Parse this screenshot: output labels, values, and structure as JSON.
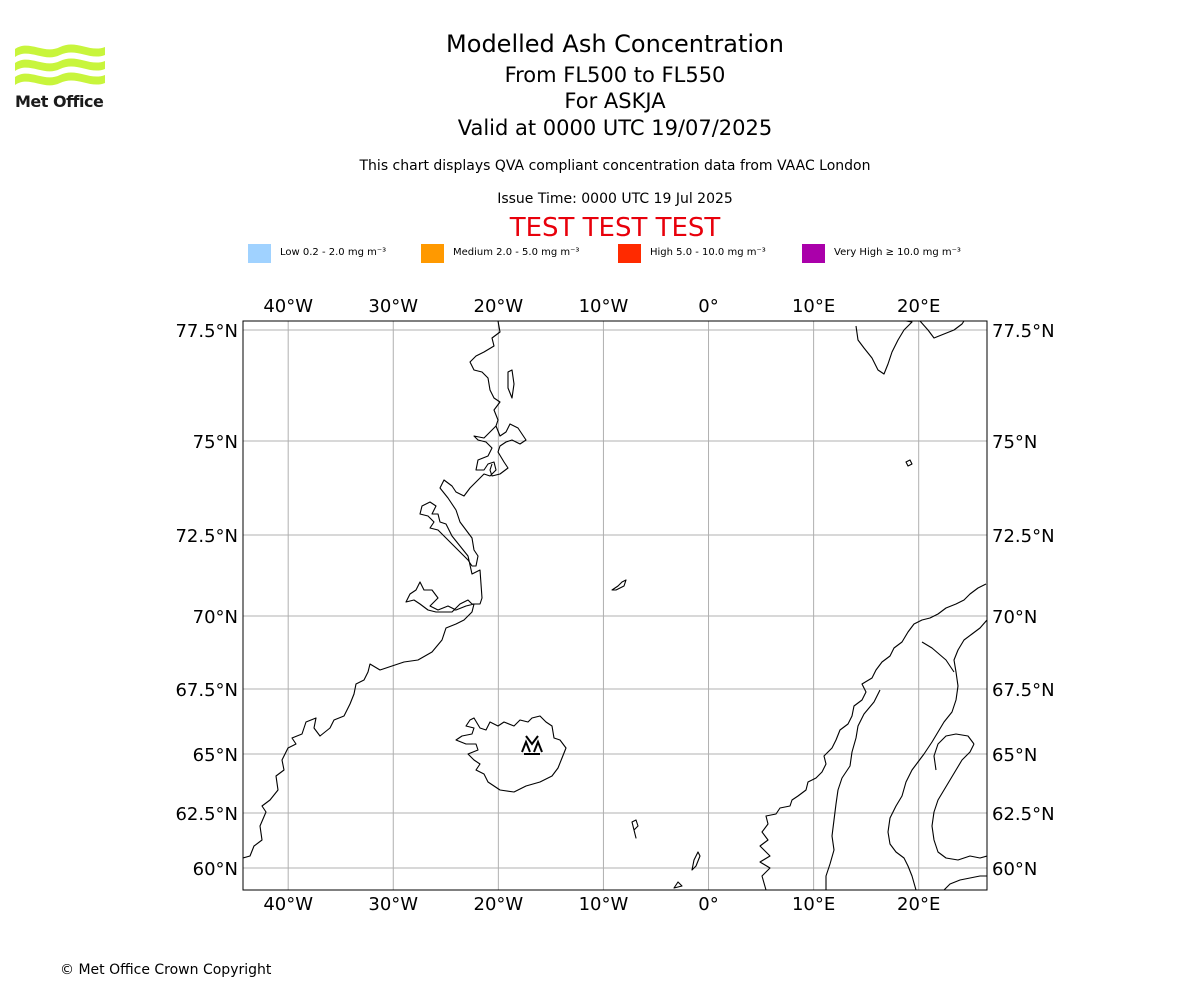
{
  "header": {
    "title": "Modelled Ash Concentration",
    "flight_levels": "From FL500 to FL550",
    "volcano_line": "For ASKJA",
    "valid_line": "Valid at 0000 UTC 19/07/2025",
    "subtitle": "This chart displays QVA compliant concentration data from VAAC London",
    "issue_time": "Issue Time: 0000 UTC 19 Jul 2025",
    "test_banner": "TEST TEST TEST"
  },
  "logo": {
    "text": "Met Office",
    "color": "#c8f53c"
  },
  "legend": [
    {
      "label": "Low 0.2 - 2.0 mg m⁻³",
      "color": "#a0d2ff"
    },
    {
      "label": "Medium 2.0 - 5.0 mg m⁻³",
      "color": "#ff9900"
    },
    {
      "label": "High 5.0 - 10.0 mg m⁻³",
      "color": "#ff2a00"
    },
    {
      "label": "Very High ≥ 10.0 mg m⁻³",
      "color": "#aa00aa"
    }
  ],
  "map": {
    "lon_range": [
      -44.3,
      26.5
    ],
    "lat_range": [
      59.2,
      77.7
    ],
    "lon_ticks": [
      {
        "value": -40,
        "label": "40°W"
      },
      {
        "value": -30,
        "label": "30°W"
      },
      {
        "value": -20,
        "label": "20°W"
      },
      {
        "value": -10,
        "label": "10°W"
      },
      {
        "value": 0,
        "label": "0°"
      },
      {
        "value": 10,
        "label": "10°E"
      },
      {
        "value": 20,
        "label": "20°E"
      }
    ],
    "lat_ticks": [
      {
        "value": 77.5,
        "label": "77.5°N"
      },
      {
        "value": 75,
        "label": "75°N"
      },
      {
        "value": 72.5,
        "label": "72.5°N"
      },
      {
        "value": 70,
        "label": "70°N"
      },
      {
        "value": 67.5,
        "label": "67.5°N"
      },
      {
        "value": 65,
        "label": "65°N"
      },
      {
        "value": 62.5,
        "label": "62.5°N"
      },
      {
        "value": 60,
        "label": "60°N"
      }
    ],
    "gridlines": true,
    "volcano": {
      "name": "ASKJA",
      "icon": "volcano-icon"
    }
  },
  "footer": {
    "copyright": "© Met Office Crown Copyright"
  }
}
